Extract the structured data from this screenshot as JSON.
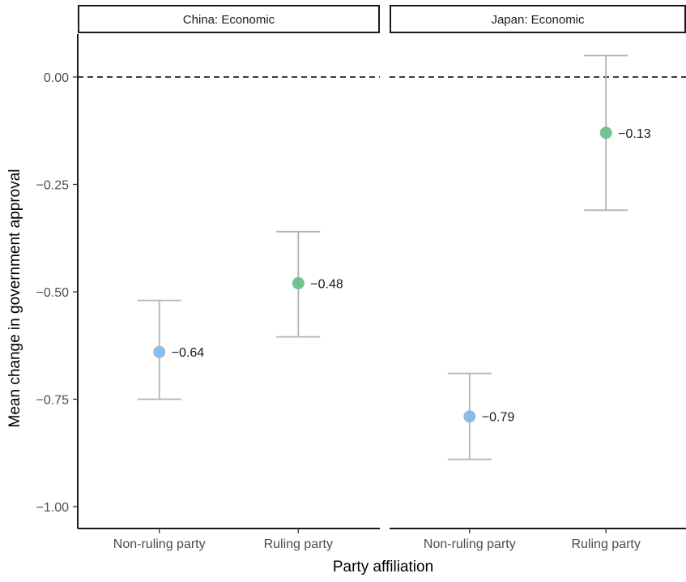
{
  "chart_data": {
    "type": "scatter",
    "subtype": "point-range (mean with error bars), faceted",
    "ylabel": "Mean change in government approval",
    "xlabel": "Party affiliation",
    "ylim": [
      -1.05,
      0.12
    ],
    "yticks": [
      {
        "value": -1.0,
        "label": "−1.00"
      },
      {
        "value": -0.75,
        "label": "−0.75"
      },
      {
        "value": -0.5,
        "label": "−0.50"
      },
      {
        "value": -0.25,
        "label": "−0.25"
      },
      {
        "value": 0.0,
        "label": "0.00"
      }
    ],
    "reference_line": {
      "y": 0,
      "style": "dashed"
    },
    "categories": [
      "Non-ruling party",
      "Ruling party"
    ],
    "colors": {
      "Non-ruling party": "#85b9e6",
      "Ruling party": "#6cbf8a"
    },
    "grid": false,
    "legend": "none",
    "panels": [
      {
        "title": "China: Economic",
        "points": [
          {
            "category": "Non-ruling party",
            "mean": -0.64,
            "lower": -0.75,
            "upper": -0.52,
            "label": "−0.64"
          },
          {
            "category": "Ruling party",
            "mean": -0.48,
            "lower": -0.605,
            "upper": -0.36,
            "label": "−0.48"
          }
        ]
      },
      {
        "title": "Japan: Economic",
        "points": [
          {
            "category": "Non-ruling party",
            "mean": -0.79,
            "lower": -0.89,
            "upper": -0.69,
            "label": "−0.79"
          },
          {
            "category": "Ruling party",
            "mean": -0.13,
            "lower": -0.31,
            "upper": 0.05,
            "label": "−0.13"
          }
        ]
      }
    ]
  }
}
